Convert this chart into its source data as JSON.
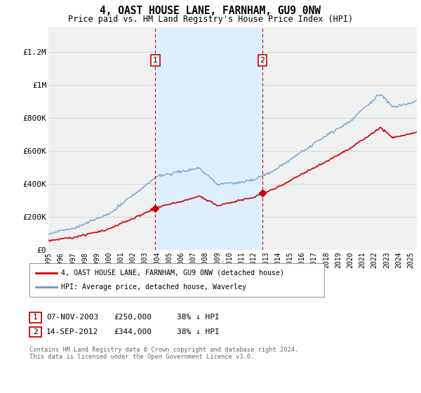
{
  "title": "4, OAST HOUSE LANE, FARNHAM, GU9 0NW",
  "subtitle": "Price paid vs. HM Land Registry's House Price Index (HPI)",
  "ylabel_ticks": [
    "£0",
    "£200K",
    "£400K",
    "£600K",
    "£800K",
    "£1M",
    "£1.2M"
  ],
  "ytick_values": [
    0,
    200000,
    400000,
    600000,
    800000,
    1000000,
    1200000
  ],
  "ylim": [
    0,
    1350000
  ],
  "xlim_start": 1995.0,
  "xlim_end": 2025.5,
  "sale1_date": 2003.85,
  "sale1_price": 250000,
  "sale2_date": 2012.71,
  "sale2_price": 344000,
  "red_line_color": "#cc0000",
  "blue_line_color": "#6699cc",
  "shade_color": "#ddeeff",
  "dashed_color": "#cc0000",
  "legend_entry1": "4, OAST HOUSE LANE, FARNHAM, GU9 0NW (detached house)",
  "legend_entry2": "HPI: Average price, detached house, Waverley",
  "table_row1_num": "1",
  "table_row1_date": "07-NOV-2003",
  "table_row1_price": "£250,000",
  "table_row1_hpi": "38% ↓ HPI",
  "table_row2_num": "2",
  "table_row2_date": "14-SEP-2012",
  "table_row2_price": "£344,000",
  "table_row2_hpi": "38% ↓ HPI",
  "footer": "Contains HM Land Registry data © Crown copyright and database right 2024.\nThis data is licensed under the Open Government Licence v3.0.",
  "background_color": "#ffffff",
  "plot_bg_color": "#f0f0f0"
}
